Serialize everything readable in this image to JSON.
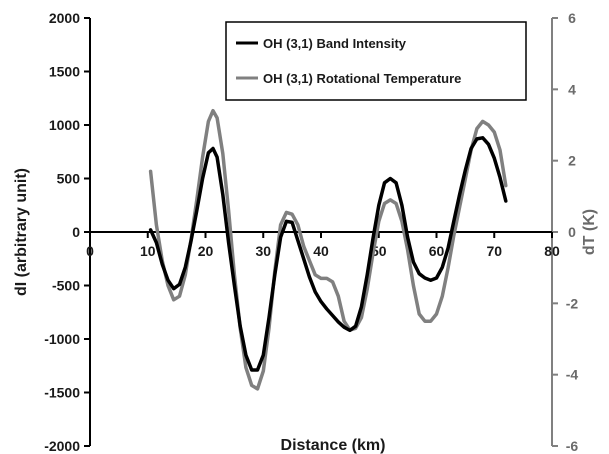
{
  "chart_data": {
    "type": "line",
    "xlabel": "Distance (km)",
    "ylabel": "dI (arbitrary unit)",
    "y2label": "dT (K)",
    "xlim": [
      0,
      80
    ],
    "ylim": [
      -2000,
      2000
    ],
    "y2lim": [
      -6,
      6
    ],
    "x_ticks": [
      "0",
      "10",
      "20",
      "30",
      "40",
      "50",
      "60",
      "70",
      "80"
    ],
    "y_ticks": [
      "2000",
      "1500",
      "1000",
      "500",
      "0",
      "-500",
      "-1000",
      "-1500",
      "-2000"
    ],
    "y2_ticks": [
      "6",
      "4",
      "2",
      "0",
      "-2",
      "-4",
      "-6"
    ],
    "grid": false,
    "legend_position": "top-right",
    "series": [
      {
        "name": "OH (3,1) Band Intensity",
        "axis": "left",
        "color": "#000000",
        "points": [
          [
            10.5,
            20
          ],
          [
            11.5,
            -100
          ],
          [
            12.5,
            -300
          ],
          [
            13.5,
            -450
          ],
          [
            14.5,
            -530
          ],
          [
            15.5,
            -490
          ],
          [
            16.5,
            -330
          ],
          [
            17.5,
            -80
          ],
          [
            18.5,
            200
          ],
          [
            19.5,
            500
          ],
          [
            20.5,
            740
          ],
          [
            21.3,
            780
          ],
          [
            22,
            700
          ],
          [
            23,
            350
          ],
          [
            24,
            -100
          ],
          [
            25,
            -500
          ],
          [
            26,
            -880
          ],
          [
            27,
            -1150
          ],
          [
            28,
            -1290
          ],
          [
            29,
            -1290
          ],
          [
            30,
            -1150
          ],
          [
            31,
            -800
          ],
          [
            32,
            -400
          ],
          [
            33,
            -50
          ],
          [
            34,
            100
          ],
          [
            35,
            90
          ],
          [
            36,
            -80
          ],
          [
            37,
            -250
          ],
          [
            38,
            -420
          ],
          [
            39,
            -560
          ],
          [
            40,
            -650
          ],
          [
            41,
            -720
          ],
          [
            42,
            -780
          ],
          [
            43,
            -840
          ],
          [
            44,
            -890
          ],
          [
            45,
            -920
          ],
          [
            46,
            -880
          ],
          [
            47,
            -700
          ],
          [
            48,
            -400
          ],
          [
            49,
            -60
          ],
          [
            50,
            250
          ],
          [
            51,
            460
          ],
          [
            52,
            500
          ],
          [
            53,
            460
          ],
          [
            54,
            250
          ],
          [
            55,
            -50
          ],
          [
            56,
            -280
          ],
          [
            57,
            -390
          ],
          [
            58,
            -430
          ],
          [
            59,
            -450
          ],
          [
            60,
            -430
          ],
          [
            61,
            -330
          ],
          [
            62,
            -150
          ],
          [
            63,
            100
          ],
          [
            64,
            350
          ],
          [
            65,
            580
          ],
          [
            66,
            780
          ],
          [
            67,
            870
          ],
          [
            68,
            880
          ],
          [
            69,
            820
          ],
          [
            70,
            690
          ],
          [
            71,
            510
          ],
          [
            72,
            290
          ]
        ]
      },
      {
        "name": "OH (3,1) Rotational Temperature",
        "axis": "right",
        "color": "#808080",
        "points": [
          [
            10.5,
            1.7
          ],
          [
            11.5,
            0.2
          ],
          [
            12.5,
            -0.8
          ],
          [
            13.5,
            -1.5
          ],
          [
            14.5,
            -1.9
          ],
          [
            15.5,
            -1.8
          ],
          [
            16.5,
            -1.2
          ],
          [
            17.5,
            -0.2
          ],
          [
            18.5,
            0.9
          ],
          [
            19.5,
            2.1
          ],
          [
            20.5,
            3.1
          ],
          [
            21.3,
            3.4
          ],
          [
            22,
            3.2
          ],
          [
            23,
            2.2
          ],
          [
            24,
            0.6
          ],
          [
            25,
            -1.2
          ],
          [
            26,
            -2.7
          ],
          [
            27,
            -3.8
          ],
          [
            28,
            -4.3
          ],
          [
            29,
            -4.4
          ],
          [
            30,
            -3.9
          ],
          [
            31,
            -2.7
          ],
          [
            32,
            -1.1
          ],
          [
            33,
            0.2
          ],
          [
            34,
            0.55
          ],
          [
            35,
            0.5
          ],
          [
            36,
            0.2
          ],
          [
            37,
            -0.4
          ],
          [
            38,
            -0.8
          ],
          [
            39,
            -1.2
          ],
          [
            40,
            -1.3
          ],
          [
            41,
            -1.3
          ],
          [
            42,
            -1.4
          ],
          [
            43,
            -1.8
          ],
          [
            44,
            -2.5
          ],
          [
            45,
            -2.75
          ],
          [
            46,
            -2.7
          ],
          [
            47,
            -2.4
          ],
          [
            48,
            -1.6
          ],
          [
            49,
            -0.6
          ],
          [
            50,
            0.3
          ],
          [
            51,
            0.8
          ],
          [
            52,
            0.9
          ],
          [
            53,
            0.8
          ],
          [
            54,
            0.3
          ],
          [
            55,
            -0.5
          ],
          [
            56,
            -1.5
          ],
          [
            57,
            -2.3
          ],
          [
            58,
            -2.5
          ],
          [
            59,
            -2.5
          ],
          [
            60,
            -2.3
          ],
          [
            61,
            -1.8
          ],
          [
            62,
            -1.0
          ],
          [
            63,
            -0.1
          ],
          [
            64,
            0.7
          ],
          [
            65,
            1.5
          ],
          [
            66,
            2.3
          ],
          [
            67,
            2.9
          ],
          [
            68,
            3.1
          ],
          [
            69,
            3.0
          ],
          [
            70,
            2.8
          ],
          [
            71,
            2.3
          ],
          [
            72,
            1.3
          ]
        ]
      }
    ]
  }
}
